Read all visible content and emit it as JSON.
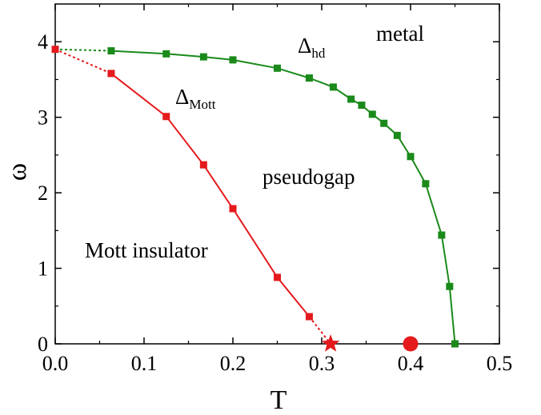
{
  "chart_data": {
    "type": "line",
    "xlabel": "T",
    "ylabel": "ω",
    "xlim": [
      0,
      0.5
    ],
    "ylim": [
      0,
      4.5
    ],
    "xticks": [
      "0.0",
      "0.1",
      "0.2",
      "0.3",
      "0.4",
      "0.5"
    ],
    "yticks": [
      "0",
      "1",
      "2",
      "3",
      "4"
    ],
    "grid": false,
    "series": [
      {
        "name": "",
        "color": "#e41a1c",
        "marker": "square",
        "x": [
          0.063,
          0.125,
          0.167,
          0.2,
          0.25,
          0.286
        ],
        "y": [
          3.58,
          3.01,
          2.37,
          1.79,
          0.88,
          0.36
        ],
        "dashed_to_start": [
          0.0,
          3.9
        ],
        "dashed_to_end": [
          0.31,
          0.0
        ]
      },
      {
        "name": "",
        "color": "#1a8a1a",
        "marker": "square",
        "x": [
          0.063,
          0.125,
          0.167,
          0.2,
          0.25,
          0.286,
          0.313,
          0.333,
          0.345,
          0.357,
          0.37,
          0.385,
          0.4,
          0.417,
          0.435,
          0.444,
          0.45
        ],
        "y": [
          3.88,
          3.84,
          3.8,
          3.76,
          3.65,
          3.52,
          3.4,
          3.24,
          3.16,
          3.04,
          2.92,
          2.76,
          2.48,
          2.12,
          1.44,
          0.76,
          0.0
        ],
        "dashed_to_start": [
          0.0,
          3.9
        ]
      }
    ],
    "start_point": {
      "x": 0.0,
      "y": 3.9,
      "color": "#e41a1c"
    },
    "special_points": [
      {
        "shape": "star",
        "x": 0.31,
        "y": 0.0,
        "color": "#e41a1c"
      },
      {
        "shape": "circle",
        "x": 0.4,
        "y": 0.0,
        "color": "#e41a1c"
      }
    ],
    "annotations": {
      "delta_mott_symbol": "Δ",
      "delta_mott_sub": "Mott",
      "delta_hd_symbol": "Δ",
      "delta_hd_sub": "hd",
      "metal": "metal",
      "pseudogap": "pseudogap",
      "mott_insulator": "Mott insulator"
    }
  }
}
